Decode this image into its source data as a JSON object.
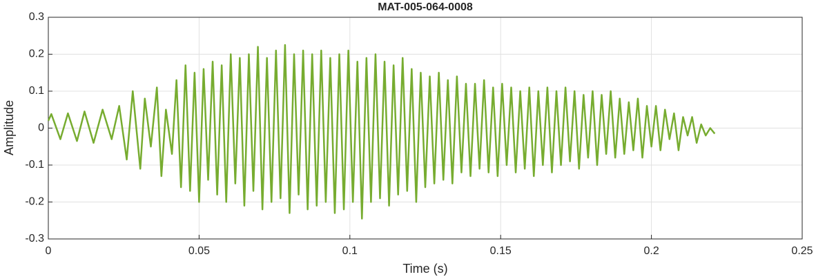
{
  "chart_data": {
    "type": "line",
    "title": "MAT-005-064-0008",
    "xlabel": "Time (s)",
    "ylabel": "Amplitude",
    "xlim": [
      0,
      0.25
    ],
    "xticks": [
      0,
      0.05,
      0.1,
      0.15,
      0.2,
      0.25
    ],
    "ylim": [
      -0.3,
      0.3
    ],
    "yticks": [
      -0.3,
      -0.2,
      -0.1,
      0,
      0.1,
      0.2,
      0.3
    ],
    "grid": true,
    "series": [
      {
        "color": "#77ac30",
        "x": [
          0,
          0.001,
          0.004,
          0.0065,
          0.0095,
          0.012,
          0.015,
          0.018,
          0.021,
          0.0235,
          0.026,
          0.028,
          0.0305,
          0.032,
          0.034,
          0.036,
          0.0375,
          0.039,
          0.041,
          0.0425,
          0.044,
          0.0455,
          0.047,
          0.0485,
          0.05,
          0.0515,
          0.053,
          0.0545,
          0.056,
          0.0575,
          0.059,
          0.0605,
          0.062,
          0.0635,
          0.065,
          0.0665,
          0.068,
          0.0695,
          0.071,
          0.0725,
          0.074,
          0.0755,
          0.077,
          0.0785,
          0.08,
          0.0815,
          0.083,
          0.0845,
          0.086,
          0.0875,
          0.089,
          0.0905,
          0.092,
          0.0935,
          0.095,
          0.0965,
          0.098,
          0.0995,
          0.101,
          0.1025,
          0.104,
          0.1055,
          0.107,
          0.1085,
          0.11,
          0.1115,
          0.113,
          0.1145,
          0.116,
          0.1175,
          0.119,
          0.1205,
          0.122,
          0.1235,
          0.125,
          0.1265,
          0.128,
          0.1295,
          0.131,
          0.1325,
          0.134,
          0.1355,
          0.137,
          0.1385,
          0.14,
          0.1415,
          0.143,
          0.1445,
          0.146,
          0.1475,
          0.149,
          0.1505,
          0.152,
          0.1535,
          0.155,
          0.1565,
          0.158,
          0.1595,
          0.161,
          0.1625,
          0.164,
          0.1655,
          0.167,
          0.1685,
          0.17,
          0.1715,
          0.173,
          0.1745,
          0.176,
          0.1775,
          0.179,
          0.1805,
          0.182,
          0.1835,
          0.185,
          0.1865,
          0.188,
          0.1895,
          0.191,
          0.1925,
          0.194,
          0.1955,
          0.197,
          0.1985,
          0.2,
          0.2015,
          0.203,
          0.2045,
          0.206,
          0.2075,
          0.209,
          0.2105,
          0.212,
          0.2135,
          0.215,
          0.2165,
          0.218,
          0.2195,
          0.221
        ],
        "values": [
          0.02,
          0.038,
          -0.03,
          0.04,
          -0.035,
          0.045,
          -0.04,
          0.05,
          -0.03,
          0.06,
          -0.085,
          0.1,
          -0.11,
          0.08,
          -0.05,
          0.11,
          -0.13,
          0.05,
          -0.07,
          0.13,
          -0.16,
          0.17,
          -0.17,
          0.15,
          -0.2,
          0.16,
          -0.14,
          0.18,
          -0.18,
          0.17,
          -0.2,
          0.2,
          -0.15,
          0.19,
          -0.21,
          0.2,
          -0.17,
          0.22,
          -0.22,
          0.19,
          -0.2,
          0.21,
          -0.19,
          0.225,
          -0.23,
          0.2,
          -0.18,
          0.21,
          -0.22,
          0.2,
          -0.21,
          0.21,
          -0.2,
          0.19,
          -0.23,
          0.2,
          -0.22,
          0.21,
          -0.2,
          0.18,
          -0.245,
          0.19,
          -0.2,
          0.2,
          -0.19,
          0.18,
          -0.21,
          0.17,
          -0.18,
          0.19,
          -0.17,
          0.16,
          -0.2,
          0.15,
          -0.16,
          0.14,
          -0.15,
          0.15,
          -0.14,
          0.13,
          -0.15,
          0.14,
          -0.12,
          0.12,
          -0.13,
          0.12,
          -0.11,
          0.13,
          -0.12,
          0.11,
          -0.13,
          0.12,
          -0.1,
          0.11,
          -0.12,
          0.1,
          -0.11,
          0.11,
          -0.13,
          0.1,
          -0.1,
          0.11,
          -0.12,
          0.1,
          -0.1,
          0.11,
          -0.09,
          0.1,
          -0.11,
          0.09,
          -0.08,
          0.1,
          -0.1,
          0.09,
          -0.07,
          0.1,
          -0.08,
          0.08,
          -0.07,
          0.07,
          -0.06,
          0.08,
          -0.08,
          0.06,
          -0.05,
          0.06,
          -0.06,
          0.05,
          -0.03,
          0.04,
          -0.06,
          0.03,
          -0.02,
          0.03,
          -0.04,
          0.01,
          -0.02,
          0,
          -0.015
        ]
      }
    ]
  }
}
